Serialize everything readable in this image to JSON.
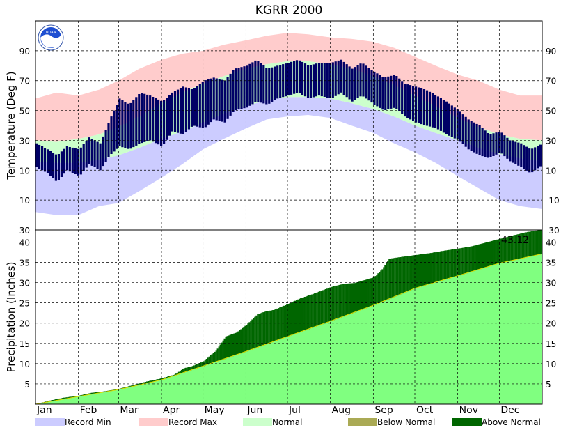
{
  "chart_data": [
    {
      "type": "area",
      "title": "KGRR 2000",
      "xlabel": "",
      "ylabel": "Temperature (Deg F)",
      "ylim": [
        -30,
        110
      ],
      "yticks": [
        -30,
        -10,
        10,
        30,
        50,
        70,
        90
      ],
      "categories": [
        "Jan",
        "Feb",
        "Mar",
        "Apr",
        "May",
        "Jun",
        "Jul",
        "Aug",
        "Sep",
        "Oct",
        "Nov",
        "Dec"
      ],
      "x": [
        0,
        31,
        60,
        91,
        121,
        152,
        182,
        213,
        244,
        274,
        305,
        335
      ],
      "xlim": [
        0,
        366
      ],
      "grid": true,
      "logo": "NOAA",
      "series": [
        {
          "name": "Record Min",
          "color": "#ccccff",
          "x": [
            0,
            15,
            31,
            46,
            60,
            75,
            91,
            106,
            121,
            136,
            152,
            167,
            182,
            197,
            213,
            228,
            244,
            259,
            274,
            289,
            305,
            320,
            335,
            350,
            366
          ],
          "values": [
            -18,
            -20,
            -20,
            -14,
            -12,
            -4,
            5,
            14,
            24,
            31,
            38,
            44,
            46,
            47,
            45,
            40,
            35,
            28,
            22,
            15,
            6,
            -2,
            -10,
            -14,
            -16
          ]
        },
        {
          "name": "Record Max",
          "color": "#ffcccc",
          "x": [
            0,
            15,
            31,
            46,
            60,
            75,
            91,
            106,
            121,
            136,
            152,
            167,
            182,
            197,
            213,
            228,
            244,
            259,
            274,
            289,
            305,
            320,
            335,
            350,
            366
          ],
          "values": [
            58,
            62,
            60,
            64,
            70,
            78,
            84,
            88,
            90,
            94,
            97,
            100,
            102,
            101,
            99,
            98,
            96,
            92,
            86,
            80,
            74,
            70,
            64,
            60,
            60
          ]
        },
        {
          "name": "Normal",
          "color": "#ccffcc",
          "x": [
            0,
            15,
            31,
            46,
            60,
            75,
            91,
            106,
            121,
            136,
            152,
            167,
            182,
            197,
            213,
            228,
            244,
            259,
            274,
            289,
            305,
            320,
            335,
            350,
            366
          ],
          "low": [
            16,
            15,
            15,
            17,
            20,
            25,
            31,
            36,
            42,
            48,
            53,
            57,
            59,
            59,
            58,
            55,
            51,
            46,
            40,
            35,
            30,
            25,
            21,
            18,
            16
          ],
          "high": [
            30,
            29,
            31,
            34,
            39,
            46,
            55,
            62,
            68,
            73,
            78,
            81,
            83,
            83,
            81,
            78,
            73,
            67,
            60,
            53,
            45,
            39,
            34,
            31,
            30
          ]
        },
        {
          "name": "Observed",
          "color": "#000066",
          "x": [
            0,
            8,
            15,
            22,
            31,
            38,
            46,
            53,
            60,
            67,
            75,
            82,
            91,
            98,
            106,
            113,
            121,
            128,
            136,
            143,
            152,
            159,
            167,
            174,
            182,
            189,
            197,
            204,
            213,
            220,
            228,
            235,
            244,
            251,
            259,
            266,
            274,
            281,
            289,
            296,
            305,
            312,
            320,
            327,
            335,
            342,
            350,
            357,
            366
          ],
          "low": [
            12,
            8,
            2,
            10,
            6,
            14,
            10,
            20,
            26,
            24,
            28,
            30,
            26,
            36,
            34,
            40,
            38,
            44,
            42,
            50,
            52,
            56,
            54,
            58,
            60,
            62,
            58,
            60,
            58,
            62,
            56,
            60,
            54,
            50,
            52,
            46,
            42,
            40,
            38,
            34,
            30,
            24,
            20,
            18,
            22,
            16,
            12,
            8,
            14
          ],
          "high": [
            28,
            24,
            20,
            26,
            24,
            32,
            28,
            44,
            58,
            54,
            62,
            60,
            56,
            62,
            66,
            64,
            70,
            72,
            70,
            78,
            80,
            84,
            78,
            80,
            82,
            84,
            80,
            82,
            82,
            84,
            78,
            82,
            76,
            72,
            74,
            68,
            66,
            64,
            60,
            56,
            50,
            44,
            40,
            34,
            36,
            30,
            28,
            24,
            28
          ]
        }
      ],
      "legend": "bottom"
    },
    {
      "type": "area",
      "title": "",
      "xlabel": "",
      "ylabel": "Precipitation (Inches)",
      "ylim": [
        0,
        43
      ],
      "yticks": [
        5,
        10,
        15,
        20,
        25,
        30,
        35,
        40
      ],
      "categories": [
        "Jan",
        "Feb",
        "Mar",
        "Apr",
        "May",
        "Jun",
        "Jul",
        "Aug",
        "Sep",
        "Oct",
        "Nov",
        "Dec"
      ],
      "x": [
        0,
        31,
        60,
        91,
        121,
        152,
        182,
        213,
        244,
        274,
        305,
        335
      ],
      "xlim": [
        0,
        366
      ],
      "grid": true,
      "annotation": "43.12",
      "series": [
        {
          "name": "Normal",
          "color": "#80ff80",
          "x": [
            0,
            31,
            60,
            91,
            121,
            152,
            182,
            213,
            244,
            274,
            305,
            335,
            366
          ],
          "values": [
            0,
            1.9,
            3.6,
            6.0,
            9.4,
            13.0,
            16.7,
            20.5,
            24.4,
            28.6,
            31.7,
            34.8,
            37.1
          ]
        },
        {
          "name": "Observed",
          "color": "#006600",
          "x": [
            0,
            10,
            20,
            31,
            40,
            50,
            60,
            70,
            80,
            91,
            100,
            107,
            113,
            121,
            130,
            137,
            145,
            152,
            160,
            165,
            172,
            182,
            190,
            200,
            213,
            222,
            230,
            244,
            250,
            255,
            265,
            274,
            285,
            295,
            305,
            315,
            325,
            335,
            345,
            355,
            366
          ],
          "values": [
            0,
            0.9,
            1.6,
            2.1,
            2.8,
            3.2,
            3.8,
            4.7,
            5.6,
            6.4,
            7.3,
            8.9,
            9.4,
            10.6,
            13.2,
            16.7,
            17.7,
            19.6,
            22.2,
            22.8,
            23.3,
            24.7,
            26.0,
            27.2,
            28.9,
            29.7,
            29.9,
            31.3,
            33.3,
            35.9,
            36.4,
            36.8,
            37.3,
            37.9,
            38.4,
            39.0,
            39.9,
            40.8,
            41.7,
            42.5,
            43.12
          ]
        }
      ],
      "legend": "bottom"
    }
  ],
  "legend_items": [
    {
      "label": "Record Min",
      "color": "#ccccff"
    },
    {
      "label": "Record Max",
      "color": "#ffcccc"
    },
    {
      "label": "Normal",
      "color": "#ccffcc"
    },
    {
      "label": "Below Normal",
      "color": "#aaaa55"
    },
    {
      "label": "Above Normal",
      "color": "#006600"
    }
  ],
  "colors": {
    "record_min": "#ccccff",
    "record_max": "#ffcccc",
    "normal_temp": "#ccffcc",
    "observed_temp": "#000066",
    "normal_precip": "#80ff80",
    "above_normal": "#006600",
    "below_normal": "#aaaa55",
    "normal_line": "#dddd00"
  }
}
